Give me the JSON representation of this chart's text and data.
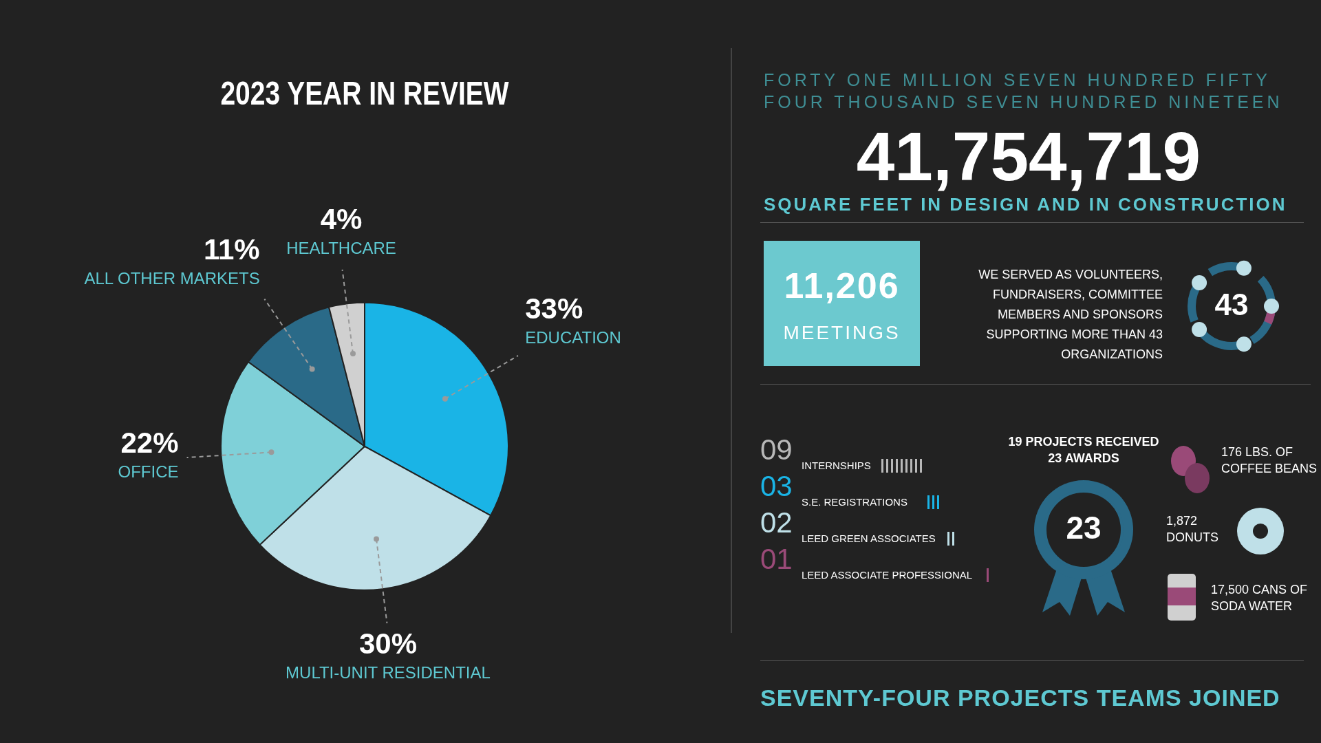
{
  "chart_data": [
    {
      "type": "pie",
      "title": "2023 YEAR IN REVIEW",
      "categories": [
        "EDUCATION",
        "MULTI-UNIT RESIDENTIAL",
        "OFFICE",
        "ALL OTHER MARKETS",
        "HEALTHCARE"
      ],
      "values": [
        33,
        30,
        22,
        11,
        4
      ],
      "value_labels": [
        "33%",
        "30%",
        "22%",
        "11%",
        "4%"
      ],
      "colors": [
        "#1ab4e6",
        "#bfe0e8",
        "#7fd0d8",
        "#2a6a88",
        "#d0d0d0"
      ]
    },
    {
      "type": "other",
      "annotations": [
        "FORTY ONE MILLION SEVEN HUNDRED FIFTY FOUR THOUSAND SEVEN HUNDRED NINETEEN",
        "41,754,719",
        "SQUARE FEET IN DESIGN AND IN CONSTRUCTION",
        "11,206",
        "MEETINGS",
        "WE SERVED AS VOLUNTEERS, FUNDRAISERS, COMMITTEE MEMBERS AND SPONSORS SUPPORTING MORE THAN 43 ORGANIZATIONS",
        "43",
        "09",
        "INTERNSHIPS",
        "03",
        "S.E. REGISTRATIONS",
        "02",
        "LEED GREEN ASSOCIATES",
        "01",
        "LEED ASSOCIATE PROFESSIONAL",
        "19 PROJECTS RECEIVED 23 AWARDS",
        "23",
        "176 LBS. OF COFFEE BEANS",
        "1,872 DONUTS",
        "17,500 CANS OF SODA WATER",
        "SEVENTY-FOUR PROJECTS TEAMS JOINED"
      ]
    }
  ]
}
